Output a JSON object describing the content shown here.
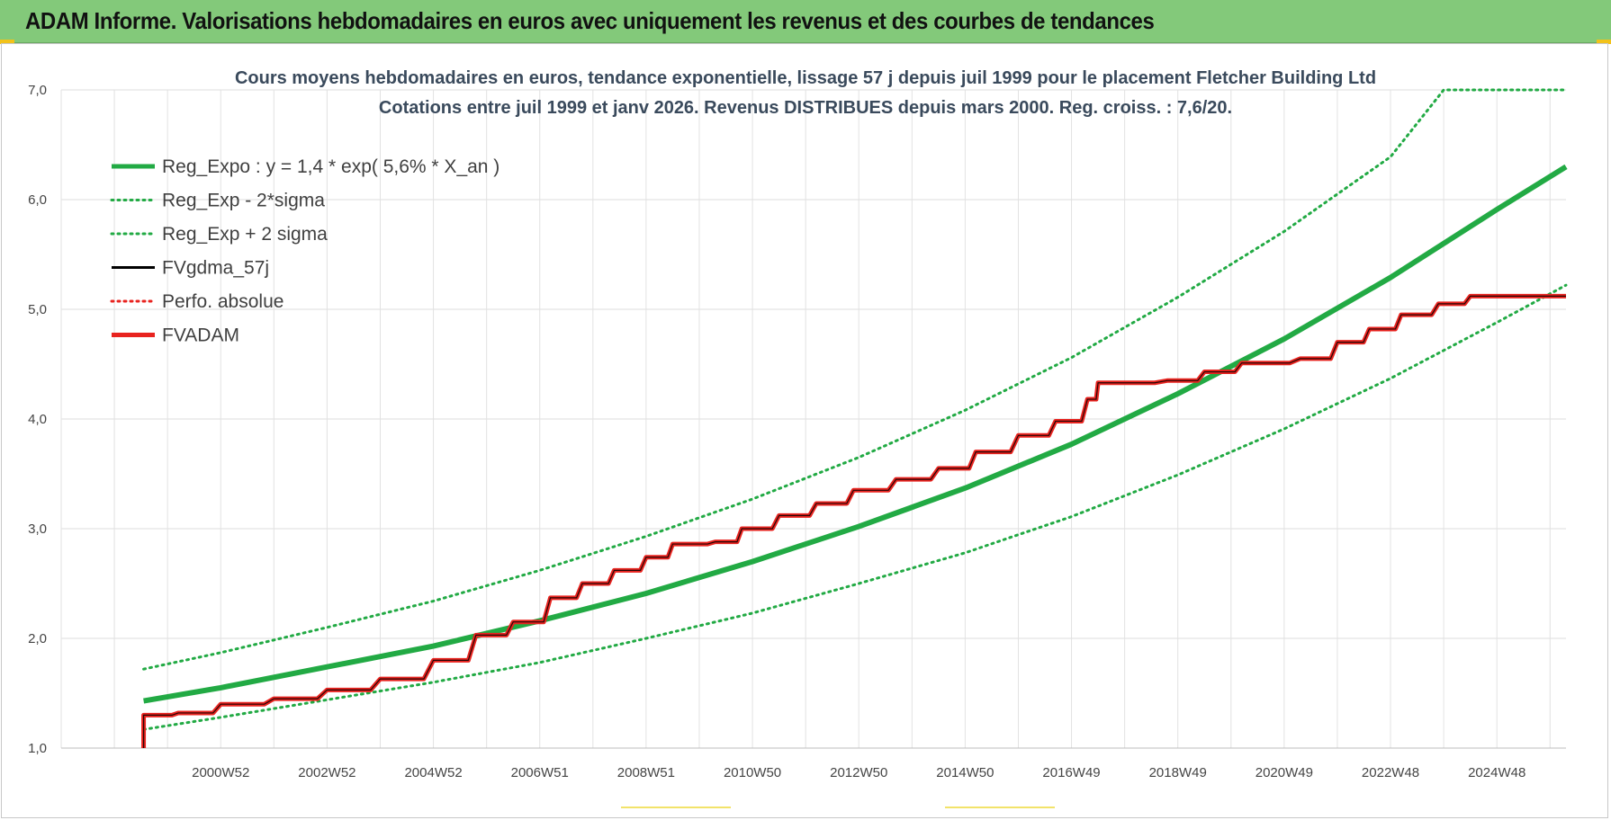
{
  "banner": {
    "title": "ADAM Informe. Valorisations hebdomadaires en euros avec uniquement les revenus et des courbes de tendances",
    "color": "#83c97a"
  },
  "chart_data": {
    "type": "line",
    "title": "Cours moyens hebdomadaires en euros, tendance exponentielle, lissage 57 j depuis juil 1999 pour le placement Fletcher Building Ltd",
    "subtitle": "Cotations entre juil 1999 et janv 2026. Revenus DISTRIBUES depuis mars 2000. Reg. croiss. : 7,6/20.",
    "xlabel": "",
    "ylabel": "",
    "ylim": [
      1.0,
      7.0
    ],
    "xlim": [
      1998.0,
      2026.3
    ],
    "y_ticks": [
      "1,0",
      "2,0",
      "3,0",
      "4,0",
      "5,0",
      "6,0",
      "7,0"
    ],
    "x_ticks": [
      {
        "label": "2000W52",
        "x": 2001.0
      },
      {
        "label": "2002W52",
        "x": 2003.0
      },
      {
        "label": "2004W52",
        "x": 2005.0
      },
      {
        "label": "2006W51",
        "x": 2007.0
      },
      {
        "label": "2008W51",
        "x": 2009.0
      },
      {
        "label": "2010W50",
        "x": 2011.0
      },
      {
        "label": "2012W50",
        "x": 2013.0
      },
      {
        "label": "2014W50",
        "x": 2015.0
      },
      {
        "label": "2016W49",
        "x": 2017.0
      },
      {
        "label": "2018W49",
        "x": 2019.0
      },
      {
        "label": "2020W49",
        "x": 2021.0
      },
      {
        "label": "2022W48",
        "x": 2023.0
      },
      {
        "label": "2024W48",
        "x": 2025.0
      }
    ],
    "grid": true,
    "legend_position": "top-left",
    "series": [
      {
        "name": "Reg_Expo : y = 1,4 * exp( 5,6% *  X_an )",
        "color": "#22aa44",
        "style": "solid-thick",
        "x": [
          1999.55,
          2001,
          2003,
          2005,
          2007,
          2009,
          2011,
          2013,
          2015,
          2017,
          2019,
          2021,
          2023,
          2025,
          2026.3
        ],
        "y": [
          1.43,
          1.55,
          1.74,
          1.93,
          2.16,
          2.41,
          2.7,
          3.02,
          3.37,
          3.77,
          4.23,
          4.73,
          5.29,
          5.91,
          6.3
        ]
      },
      {
        "name": "Reg_Exp - 2*sigma",
        "color": "#22aa44",
        "style": "dotted",
        "x": [
          1999.55,
          2001,
          2003,
          2005,
          2007,
          2009,
          2011,
          2013,
          2015,
          2017,
          2019,
          2021,
          2023,
          2025,
          2026.3
        ],
        "y": [
          1.17,
          1.28,
          1.44,
          1.6,
          1.78,
          2.0,
          2.23,
          2.5,
          2.78,
          3.11,
          3.49,
          3.91,
          4.37,
          4.88,
          5.22
        ]
      },
      {
        "name": "Reg_Exp + 2 sigma",
        "color": "#22aa44",
        "style": "dotted",
        "x": [
          1999.55,
          2001,
          2003,
          2005,
          2007,
          2009,
          2011,
          2013,
          2015,
          2017,
          2019,
          2021,
          2023,
          2024.0,
          2026.3
        ],
        "y": [
          1.72,
          1.87,
          2.1,
          2.34,
          2.62,
          2.93,
          3.27,
          3.65,
          4.08,
          4.56,
          5.11,
          5.71,
          6.39,
          7.0,
          7.0
        ]
      },
      {
        "name": "FVgdma_57j",
        "color": "#000000",
        "style": "solid-thin",
        "x": [
          1999.55,
          1999.55,
          2000.2,
          2001,
          2002,
          2003,
          2004,
          2005,
          2005.8,
          2006.5,
          2007.2,
          2007.8,
          2008.4,
          2009.0,
          2009.5,
          2010.3,
          2010.8,
          2011.5,
          2012.2,
          2012.9,
          2013.7,
          2014.5,
          2015.2,
          2016.0,
          2016.7,
          2017.3,
          2017.5,
          2018.8,
          2019.5,
          2020.2,
          2021.3,
          2022.0,
          2022.6,
          2023.2,
          2023.9,
          2024.5,
          2025.5,
          2026.3
        ],
        "y": [
          1.0,
          1.3,
          1.32,
          1.4,
          1.45,
          1.53,
          1.63,
          1.8,
          2.03,
          2.15,
          2.37,
          2.5,
          2.62,
          2.74,
          2.86,
          2.88,
          3.0,
          3.12,
          3.23,
          3.35,
          3.45,
          3.55,
          3.7,
          3.85,
          3.98,
          4.18,
          4.33,
          4.35,
          4.43,
          4.51,
          4.55,
          4.7,
          4.82,
          4.95,
          5.05,
          5.12,
          5.12,
          5.12
        ]
      },
      {
        "name": "Perfo. absolue",
        "color": "#e8231f",
        "style": "dotted",
        "x": [
          1999.55,
          1999.55,
          2000.2,
          2001,
          2002,
          2003,
          2004,
          2005,
          2005.8,
          2006.5,
          2007.2,
          2007.8,
          2008.4,
          2009.0,
          2009.5,
          2010.3,
          2010.8,
          2011.5,
          2012.2,
          2012.9,
          2013.7,
          2014.5,
          2015.2,
          2016.0,
          2016.7,
          2017.3,
          2017.5,
          2018.8,
          2019.5,
          2020.2,
          2021.3,
          2022.0,
          2022.6,
          2023.2,
          2023.9,
          2024.5,
          2025.5,
          2026.3
        ],
        "y": [
          1.0,
          1.3,
          1.32,
          1.4,
          1.45,
          1.53,
          1.63,
          1.8,
          2.03,
          2.15,
          2.37,
          2.5,
          2.62,
          2.74,
          2.86,
          2.88,
          3.0,
          3.12,
          3.23,
          3.35,
          3.45,
          3.55,
          3.7,
          3.85,
          3.98,
          4.18,
          4.33,
          4.35,
          4.43,
          4.51,
          4.55,
          4.7,
          4.82,
          4.95,
          5.05,
          5.12,
          5.12,
          5.12
        ]
      },
      {
        "name": "FVADAM",
        "color": "#e8231f",
        "style": "stepped-thick",
        "x": [
          1999.55,
          1999.55,
          2000.2,
          2001,
          2002,
          2003,
          2004,
          2005,
          2005.8,
          2006.5,
          2007.2,
          2007.8,
          2008.4,
          2009.0,
          2009.5,
          2010.3,
          2010.8,
          2011.5,
          2012.2,
          2012.9,
          2013.7,
          2014.5,
          2015.2,
          2016.0,
          2016.7,
          2017.3,
          2017.5,
          2018.8,
          2019.5,
          2020.2,
          2021.3,
          2022.0,
          2022.6,
          2023.2,
          2023.9,
          2024.5,
          2025.5,
          2026.3
        ],
        "y": [
          1.0,
          1.3,
          1.32,
          1.4,
          1.45,
          1.53,
          1.63,
          1.8,
          2.03,
          2.15,
          2.37,
          2.5,
          2.62,
          2.74,
          2.86,
          2.88,
          3.0,
          3.12,
          3.23,
          3.35,
          3.45,
          3.55,
          3.7,
          3.85,
          3.98,
          4.18,
          4.33,
          4.35,
          4.43,
          4.51,
          4.55,
          4.7,
          4.82,
          4.95,
          5.05,
          5.12,
          5.12,
          5.12
        ]
      }
    ]
  }
}
